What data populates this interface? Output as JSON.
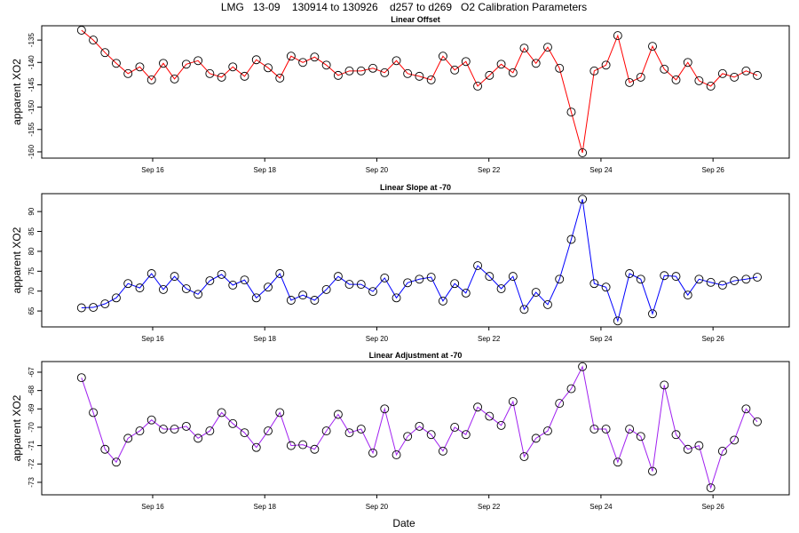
{
  "title": "LMG   13-09    130914 to 130926    d257 to d269   O2 Calibration Parameters",
  "x_label": "Date",
  "chart_data": [
    {
      "type": "line",
      "title": "Linear Offset",
      "y_label": "apparent XO2",
      "color": "#ff0000",
      "x": [
        14.73,
        14.94,
        15.15,
        15.35,
        15.56,
        15.77,
        15.98,
        16.19,
        16.39,
        16.6,
        16.81,
        17.02,
        17.23,
        17.43,
        17.64,
        17.85,
        18.06,
        18.27,
        18.47,
        18.68,
        18.89,
        19.1,
        19.31,
        19.51,
        19.72,
        19.93,
        20.14,
        20.35,
        20.55,
        20.76,
        20.97,
        21.18,
        21.39,
        21.59,
        21.8,
        22.01,
        22.22,
        22.43,
        22.63,
        22.84,
        23.05,
        23.26,
        23.47,
        23.67,
        23.88,
        24.09,
        24.3,
        24.51,
        24.71,
        24.92,
        25.13,
        25.34,
        25.55,
        25.75,
        25.96,
        26.17,
        26.38,
        26.59,
        26.79
      ],
      "values": [
        -132.8,
        -135,
        -137.8,
        -140.2,
        -142.5,
        -141,
        -143.9,
        -140.2,
        -143.7,
        -140.4,
        -139.6,
        -142.5,
        -143.3,
        -141,
        -143.1,
        -139.4,
        -141.2,
        -143.5,
        -138.6,
        -140,
        -138.8,
        -140.6,
        -142.9,
        -141.9,
        -141.9,
        -141.3,
        -142.3,
        -139.6,
        -142.5,
        -143.1,
        -143.9,
        -138.6,
        -141.7,
        -139.8,
        -145.3,
        -142.9,
        -140.4,
        -142.3,
        -136.8,
        -140.2,
        -136.6,
        -141.3,
        -151.1,
        -160.2,
        -141.9,
        -140.6,
        -134,
        -144.5,
        -143.3,
        -136.4,
        -141.5,
        -143.9,
        -140,
        -144.1,
        -145.3,
        -142.5,
        -143.3,
        -141.9,
        -142.9
      ],
      "xlim": [
        14.02,
        27.36
      ],
      "xticks": [
        {
          "value": 16,
          "label": "Sep 16"
        },
        {
          "value": 18,
          "label": "Sep 18"
        },
        {
          "value": 20,
          "label": "Sep 20"
        },
        {
          "value": 22,
          "label": "Sep 22"
        },
        {
          "value": 24,
          "label": "Sep 24"
        },
        {
          "value": 26,
          "label": "Sep 26"
        }
      ],
      "ylim": [
        -161.4,
        -131.8
      ],
      "yticks": [
        -160,
        -155,
        -150,
        -145,
        -140,
        -135
      ]
    },
    {
      "type": "line",
      "title": "Linear Slope at -70",
      "y_label": "apparent XO2",
      "color": "#0000ff",
      "x": [
        14.73,
        14.94,
        15.15,
        15.35,
        15.56,
        15.77,
        15.98,
        16.19,
        16.39,
        16.6,
        16.81,
        17.02,
        17.23,
        17.43,
        17.64,
        17.85,
        18.06,
        18.27,
        18.47,
        18.68,
        18.89,
        19.1,
        19.31,
        19.51,
        19.72,
        19.93,
        20.14,
        20.35,
        20.55,
        20.76,
        20.97,
        21.18,
        21.39,
        21.59,
        21.8,
        22.01,
        22.22,
        22.43,
        22.63,
        22.84,
        23.05,
        23.26,
        23.47,
        23.67,
        23.88,
        24.09,
        24.3,
        24.51,
        24.71,
        24.92,
        25.13,
        25.34,
        25.55,
        25.75,
        25.96,
        26.17,
        26.38,
        26.59,
        26.79
      ],
      "values": [
        65.8,
        65.9,
        66.8,
        68.3,
        71.9,
        70.8,
        74.4,
        70.4,
        73.7,
        70.6,
        69.2,
        72.6,
        74.2,
        71.5,
        72.8,
        68.3,
        71,
        74.4,
        67.7,
        69,
        67.7,
        70.4,
        73.7,
        71.7,
        71.7,
        69.9,
        73.3,
        68.3,
        72.1,
        73,
        73.5,
        67.5,
        71.9,
        69.5,
        76.4,
        73.7,
        70.6,
        73.7,
        65.4,
        69.7,
        66.6,
        73,
        83,
        93.1,
        71.9,
        71,
        62.5,
        74.4,
        73,
        64.3,
        73.9,
        73.7,
        69,
        73,
        72.2,
        71.5,
        72.6,
        73,
        73.5
      ],
      "xlim": [
        14.02,
        27.36
      ],
      "xticks": [
        {
          "value": 16,
          "label": "Sep 16"
        },
        {
          "value": 18,
          "label": "Sep 18"
        },
        {
          "value": 20,
          "label": "Sep 20"
        },
        {
          "value": 22,
          "label": "Sep 22"
        },
        {
          "value": 24,
          "label": "Sep 24"
        },
        {
          "value": 26,
          "label": "Sep 26"
        }
      ],
      "ylim": [
        61.0,
        94.5
      ],
      "yticks": [
        65,
        70,
        75,
        80,
        85,
        90
      ]
    },
    {
      "type": "line",
      "title": "Linear Adjustment at -70",
      "y_label": "apparent XO2",
      "color": "#a020f0",
      "x": [
        14.73,
        14.94,
        15.15,
        15.35,
        15.56,
        15.77,
        15.98,
        16.19,
        16.39,
        16.6,
        16.81,
        17.02,
        17.23,
        17.43,
        17.64,
        17.85,
        18.06,
        18.27,
        18.47,
        18.68,
        18.89,
        19.1,
        19.31,
        19.51,
        19.72,
        19.93,
        20.14,
        20.35,
        20.55,
        20.76,
        20.97,
        21.18,
        21.39,
        21.59,
        21.8,
        22.01,
        22.22,
        22.43,
        22.63,
        22.84,
        23.05,
        23.26,
        23.47,
        23.67,
        23.88,
        24.09,
        24.3,
        24.51,
        24.71,
        24.92,
        25.13,
        25.34,
        25.55,
        25.75,
        25.96,
        26.17,
        26.38,
        26.59,
        26.79
      ],
      "values": [
        -67.3,
        -69.2,
        -71.2,
        -71.9,
        -70.6,
        -70.2,
        -69.6,
        -70.1,
        -70.1,
        -69.95,
        -70.6,
        -70.2,
        -69.2,
        -69.8,
        -70.3,
        -71.1,
        -70.2,
        -69.2,
        -71,
        -70.95,
        -71.2,
        -70.2,
        -69.3,
        -70.3,
        -70.1,
        -71.4,
        -69,
        -71.5,
        -70.5,
        -69.95,
        -70.4,
        -71.3,
        -70,
        -70.4,
        -68.9,
        -69.4,
        -69.9,
        -68.6,
        -71.6,
        -70.6,
        -70.2,
        -68.7,
        -67.9,
        -66.7,
        -70.1,
        -70.1,
        -71.9,
        -70.1,
        -70.5,
        -72.4,
        -67.7,
        -70.4,
        -71.2,
        -71,
        -73.3,
        -71.3,
        -70.7,
        -69,
        -69.7
      ],
      "xlim": [
        14.02,
        27.36
      ],
      "xticks": [
        {
          "value": 16,
          "label": "Sep 16"
        },
        {
          "value": 18,
          "label": "Sep 18"
        },
        {
          "value": 20,
          "label": "Sep 20"
        },
        {
          "value": 22,
          "label": "Sep 22"
        },
        {
          "value": 24,
          "label": "Sep 24"
        },
        {
          "value": 26,
          "label": "Sep 26"
        }
      ],
      "ylim": [
        -73.68,
        -66.42
      ],
      "yticks": [
        -73,
        -72,
        -71,
        -70,
        -69,
        -68,
        -67
      ]
    }
  ]
}
